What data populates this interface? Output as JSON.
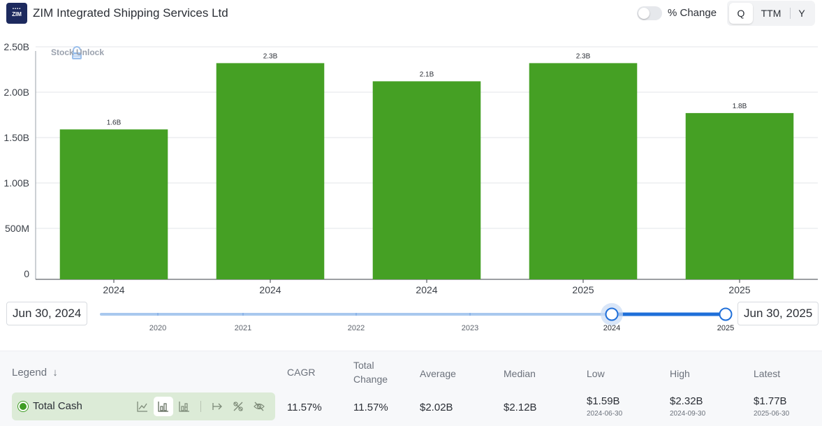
{
  "header": {
    "logo_text": "ZIM",
    "company_name": "ZIM Integrated Shipping Services Ltd",
    "percent_change_label": "% Change",
    "percent_change_on": false,
    "periods": [
      "Q",
      "TTM",
      "Y"
    ],
    "active_period": "Q"
  },
  "watermark": "Stock Unlock",
  "chart_data": {
    "type": "bar",
    "categories": [
      "2024",
      "2024",
      "2024",
      "2025",
      "2025"
    ],
    "values": [
      1.59,
      2.32,
      2.12,
      2.32,
      1.77
    ],
    "data_labels": [
      "1.6B",
      "2.3B",
      "2.1B",
      "2.3B",
      "1.8B"
    ],
    "ylim": [
      0,
      2.5
    ],
    "yticks": [
      0,
      0.5,
      1.0,
      1.5,
      2.0,
      2.5
    ],
    "ytick_labels": [
      "0",
      "500M",
      "1.00B",
      "1.50B",
      "2.00B",
      "2.50B"
    ],
    "bar_color": "#45a024",
    "grid": true
  },
  "range": {
    "start_label": "Jun 30, 2024",
    "end_label": "Jun 30, 2025",
    "years": [
      "2020",
      "2021",
      "2022",
      "2023",
      "2024",
      "2025"
    ]
  },
  "table": {
    "legend_header": "Legend",
    "columns": [
      "CAGR",
      "Total Change",
      "Average",
      "Median",
      "Low",
      "High",
      "Latest"
    ],
    "series_name": "Total Cash",
    "series_color": "#3f9c24",
    "cagr": "11.57%",
    "total_change": "11.57%",
    "average": "$2.02B",
    "median": "$2.12B",
    "low": "$1.59B",
    "low_date": "2024-06-30",
    "high": "$2.32B",
    "high_date": "2024-09-30",
    "latest": "$1.77B",
    "latest_date": "2025-06-30",
    "tool_icons": [
      "line-chart-icon",
      "bar-chart-icon",
      "stacked-bar-icon",
      "arrow-to-line-icon",
      "percent-icon",
      "eye-off-icon"
    ]
  }
}
